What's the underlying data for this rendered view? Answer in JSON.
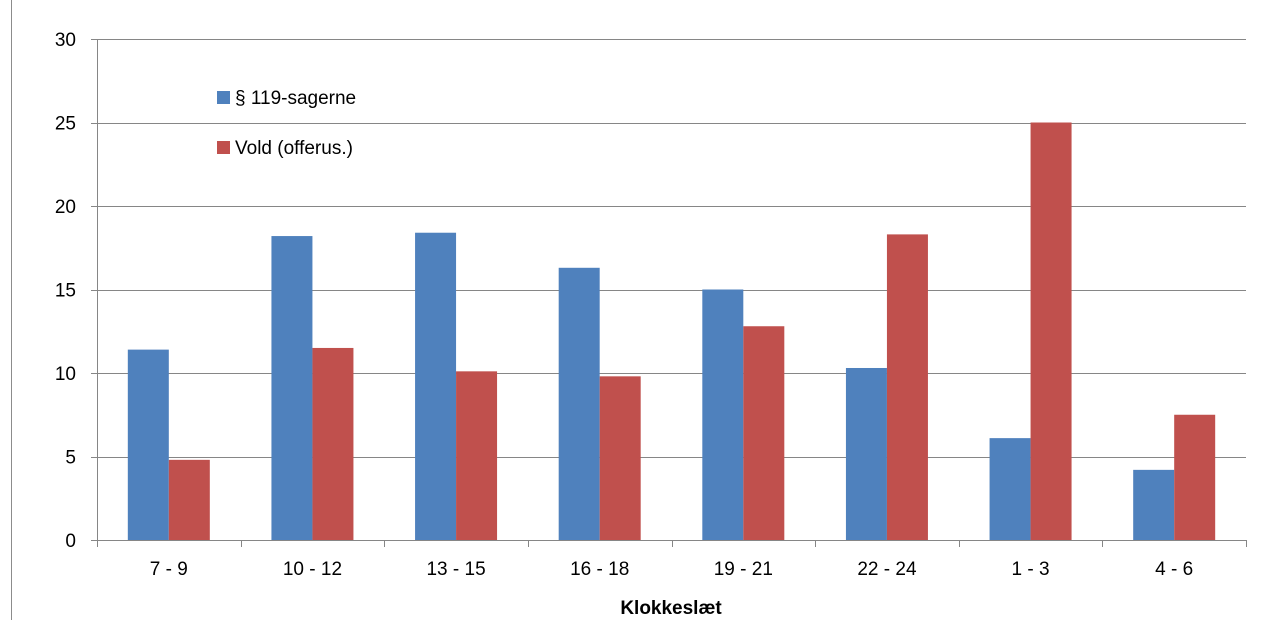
{
  "chart_data": {
    "type": "bar",
    "title": "",
    "xlabel": "Klokkeslæt",
    "ylabel": "",
    "ylim": [
      0,
      30
    ],
    "yticks": [
      0,
      5,
      10,
      15,
      20,
      25,
      30
    ],
    "grid": true,
    "legend_position": "top-left",
    "categories": [
      "7 - 9",
      "10 - 12",
      "13 - 15",
      "16 - 18",
      "19 - 21",
      "22 - 24",
      "1 - 3",
      "4 - 6"
    ],
    "series": [
      {
        "name": "§ 119-sagerne",
        "color": "#4F81BD",
        "values": [
          11.4,
          18.2,
          18.4,
          16.3,
          15.0,
          10.3,
          6.1,
          4.2
        ]
      },
      {
        "name": "Vold (offerus.)",
        "color": "#C0504D",
        "values": [
          4.8,
          11.5,
          10.1,
          9.8,
          12.8,
          18.3,
          25.0,
          7.5
        ]
      }
    ]
  }
}
